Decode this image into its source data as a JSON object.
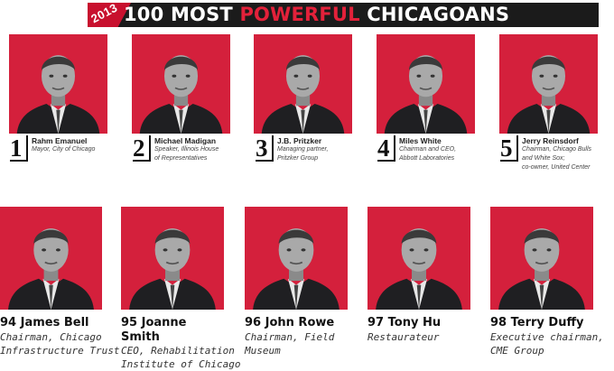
{
  "header": {
    "year": "2013",
    "title_pre": "100 MOST ",
    "title_highlight": "POWERFUL",
    "title_post": " CHICAGOANS"
  },
  "colors": {
    "accent": "#e3213a",
    "photo_bg": "#d4203c",
    "banner": "#1b1b1b"
  },
  "top_row": [
    {
      "rank": "1",
      "name": "Rahm Emanuel",
      "desc": [
        "Mayor, City of Chicago"
      ]
    },
    {
      "rank": "2",
      "name": "Michael Madigan",
      "desc": [
        "Speaker, Illinois House",
        "of Representatives"
      ]
    },
    {
      "rank": "3",
      "name": "J.B. Pritzker",
      "desc": [
        "Managing partner,",
        "Pritzker Group"
      ]
    },
    {
      "rank": "4",
      "name": "Miles White",
      "desc": [
        "Chairman and CEO,",
        "Abbott Laboratories"
      ]
    },
    {
      "rank": "5",
      "name": "Jerry Reinsdorf",
      "desc": [
        "Chairman, Chicago Bulls",
        "and White Sox;",
        "co-owner, United Center"
      ]
    }
  ],
  "bottom_row": [
    {
      "rank": "94",
      "name": "James Bell",
      "name2": "",
      "desc": [
        "Chairman, Chicago",
        "Infrastructure Trust"
      ]
    },
    {
      "rank": "95",
      "name": "Joanne",
      "name2": "Smith",
      "desc": [
        "CEO, Rehabilitation",
        "Institute of Chicago"
      ]
    },
    {
      "rank": "96",
      "name": "John Rowe",
      "name2": "",
      "desc": [
        "Chairman, Field",
        "Museum"
      ]
    },
    {
      "rank": "97",
      "name": "Tony Hu",
      "name2": "",
      "desc": [
        "Restaurateur"
      ]
    },
    {
      "rank": "98",
      "name": "Terry Duffy",
      "name2": "",
      "desc": [
        "Executive chairman,",
        "CME Group"
      ]
    }
  ]
}
